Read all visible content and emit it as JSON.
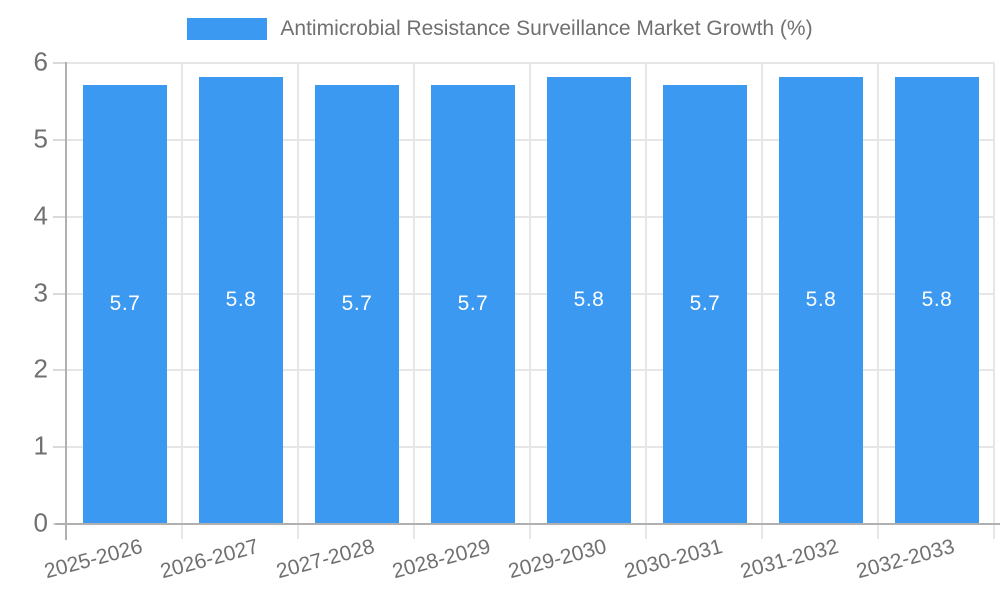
{
  "chart_data": {
    "type": "bar",
    "title": "Antimicrobial Resistance Surveillance Market Growth (%)",
    "categories": [
      "2025-2026",
      "2026-2027",
      "2027-2028",
      "2028-2029",
      "2029-2030",
      "2030-2031",
      "2031-2032",
      "2032-2033"
    ],
    "values": [
      5.7,
      5.8,
      5.7,
      5.7,
      5.8,
      5.7,
      5.8,
      5.8
    ],
    "xlabel": "",
    "ylabel": "",
    "ylim": [
      0,
      6
    ],
    "yticks": [
      0,
      1,
      2,
      3,
      4,
      5,
      6
    ],
    "grid": true,
    "legend_position": "top",
    "value_labels_shown": true,
    "colors": {
      "bar": "#3B99F1",
      "value_label": "#FFFFFF",
      "grid": "#E6E6E6",
      "axis": "#B0B0B0",
      "tick": "#D9D9D9",
      "text": "#707070",
      "background": "#FFFFFF"
    }
  },
  "legend": {
    "items": [
      {
        "label": "Antimicrobial Resistance Surveillance Market Growth (%)",
        "swatch_color": "#3B99F1"
      }
    ]
  }
}
